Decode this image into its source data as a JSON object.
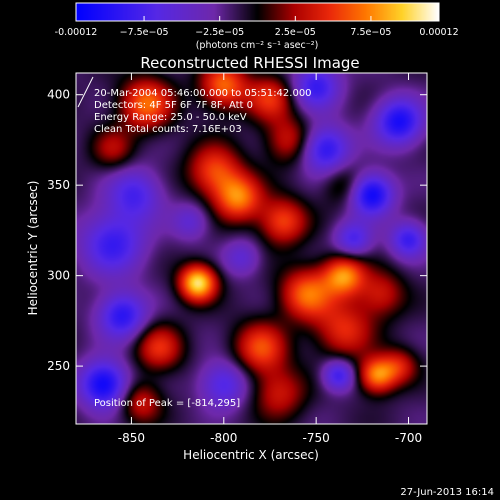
{
  "chart_data": {
    "type": "heatmap",
    "title": "Reconstructed RHESSI Image",
    "xlabel": "Heliocentric X (arcsec)",
    "ylabel": "Heliocentric Y (arcsec)",
    "xlim": [
      -880,
      -690
    ],
    "ylim": [
      218,
      412
    ],
    "x_ticks": [
      {
        "value": -850,
        "label": "-850"
      },
      {
        "value": -800,
        "label": "-800"
      },
      {
        "value": -750,
        "label": "-750"
      },
      {
        "value": -700,
        "label": "-700"
      }
    ],
    "y_ticks": [
      {
        "value": 250,
        "label": "250"
      },
      {
        "value": 300,
        "label": "300"
      },
      {
        "value": 350,
        "label": "350"
      },
      {
        "value": 400,
        "label": "400"
      }
    ],
    "colorbar": {
      "min": -0.00012,
      "max": 0.00012,
      "ticks": [
        {
          "value": -0.00012,
          "label": "-0.00012"
        },
        {
          "value": -7.5e-05,
          "label": "−7.5e−05"
        },
        {
          "value": -2.5e-05,
          "label": "−2.5e−05"
        },
        {
          "value": 2.5e-05,
          "label": "2.5e−05"
        },
        {
          "value": 7.5e-05,
          "label": "7.5e−05"
        },
        {
          "value": 0.00012,
          "label": "0.00012"
        }
      ],
      "unit_label": "(photons cm⁻² s⁻¹ asec⁻²)"
    },
    "annotations": [
      "20-Mar-2004 05:46:00.000 to 05:51:42.000",
      "Detectors: 4F 5F 6F 7F 8F, Att 0",
      "Energy Range: 25.0 - 50.0 keV",
      "Clean     Total counts: 7.16E+03"
    ],
    "peak_label": "Position of Peak = [-814,295]",
    "peak": [
      -814,
      295
    ],
    "blobs": [
      {
        "x": -814,
        "y": 296,
        "v": 0.00012,
        "s": 7
      },
      {
        "x": -792,
        "y": 343,
        "v": 8.5e-05,
        "s": 9
      },
      {
        "x": -768,
        "y": 330,
        "v": 7e-05,
        "s": 9
      },
      {
        "x": -805,
        "y": 358,
        "v": 7e-05,
        "s": 10
      },
      {
        "x": -755,
        "y": 290,
        "v": 8e-05,
        "s": 10
      },
      {
        "x": -735,
        "y": 300,
        "v": 9e-05,
        "s": 8
      },
      {
        "x": -717,
        "y": 245,
        "v": 9e-05,
        "s": 7
      },
      {
        "x": -735,
        "y": 270,
        "v": 6e-05,
        "s": 11
      },
      {
        "x": -780,
        "y": 260,
        "v": 7e-05,
        "s": 10
      },
      {
        "x": -770,
        "y": 235,
        "v": 5e-05,
        "s": 10
      },
      {
        "x": -835,
        "y": 260,
        "v": 6e-05,
        "s": 9
      },
      {
        "x": -845,
        "y": 230,
        "v": 5e-05,
        "s": 8
      },
      {
        "x": -842,
        "y": 395,
        "v": 8e-05,
        "s": 10
      },
      {
        "x": -800,
        "y": 405,
        "v": 8e-05,
        "s": 9
      },
      {
        "x": -775,
        "y": 398,
        "v": 6e-05,
        "s": 9
      },
      {
        "x": -765,
        "y": 375,
        "v": 5e-05,
        "s": 9
      },
      {
        "x": -860,
        "y": 370,
        "v": 4e-05,
        "s": 8
      },
      {
        "x": -715,
        "y": 290,
        "v": 5e-05,
        "s": 9
      },
      {
        "x": -705,
        "y": 250,
        "v": 5e-05,
        "s": 7
      },
      {
        "x": -735,
        "y": 350,
        "v": 3e-05,
        "s": 8
      },
      {
        "x": -860,
        "y": 318,
        "v": -7e-05,
        "s": 12
      },
      {
        "x": -855,
        "y": 278,
        "v": -8e-05,
        "s": 9
      },
      {
        "x": -865,
        "y": 240,
        "v": -0.0001,
        "s": 9
      },
      {
        "x": -848,
        "y": 345,
        "v": -6e-05,
        "s": 10
      },
      {
        "x": -720,
        "y": 345,
        "v": -0.0001,
        "s": 8
      },
      {
        "x": -745,
        "y": 370,
        "v": -8e-05,
        "s": 9
      },
      {
        "x": -705,
        "y": 385,
        "v": -9e-05,
        "s": 9
      },
      {
        "x": -750,
        "y": 405,
        "v": -7e-05,
        "s": 9
      },
      {
        "x": -730,
        "y": 320,
        "v": -6e-05,
        "s": 7
      },
      {
        "x": -700,
        "y": 320,
        "v": -7e-05,
        "s": 7
      },
      {
        "x": -800,
        "y": 240,
        "v": -6e-05,
        "s": 9
      },
      {
        "x": -738,
        "y": 245,
        "v": -7e-05,
        "s": 6
      },
      {
        "x": -790,
        "y": 310,
        "v": -4e-05,
        "s": 7
      },
      {
        "x": -818,
        "y": 330,
        "v": -4e-05,
        "s": 7
      }
    ]
  },
  "footer": {
    "date": "27-Jun-2013 16:14"
  }
}
